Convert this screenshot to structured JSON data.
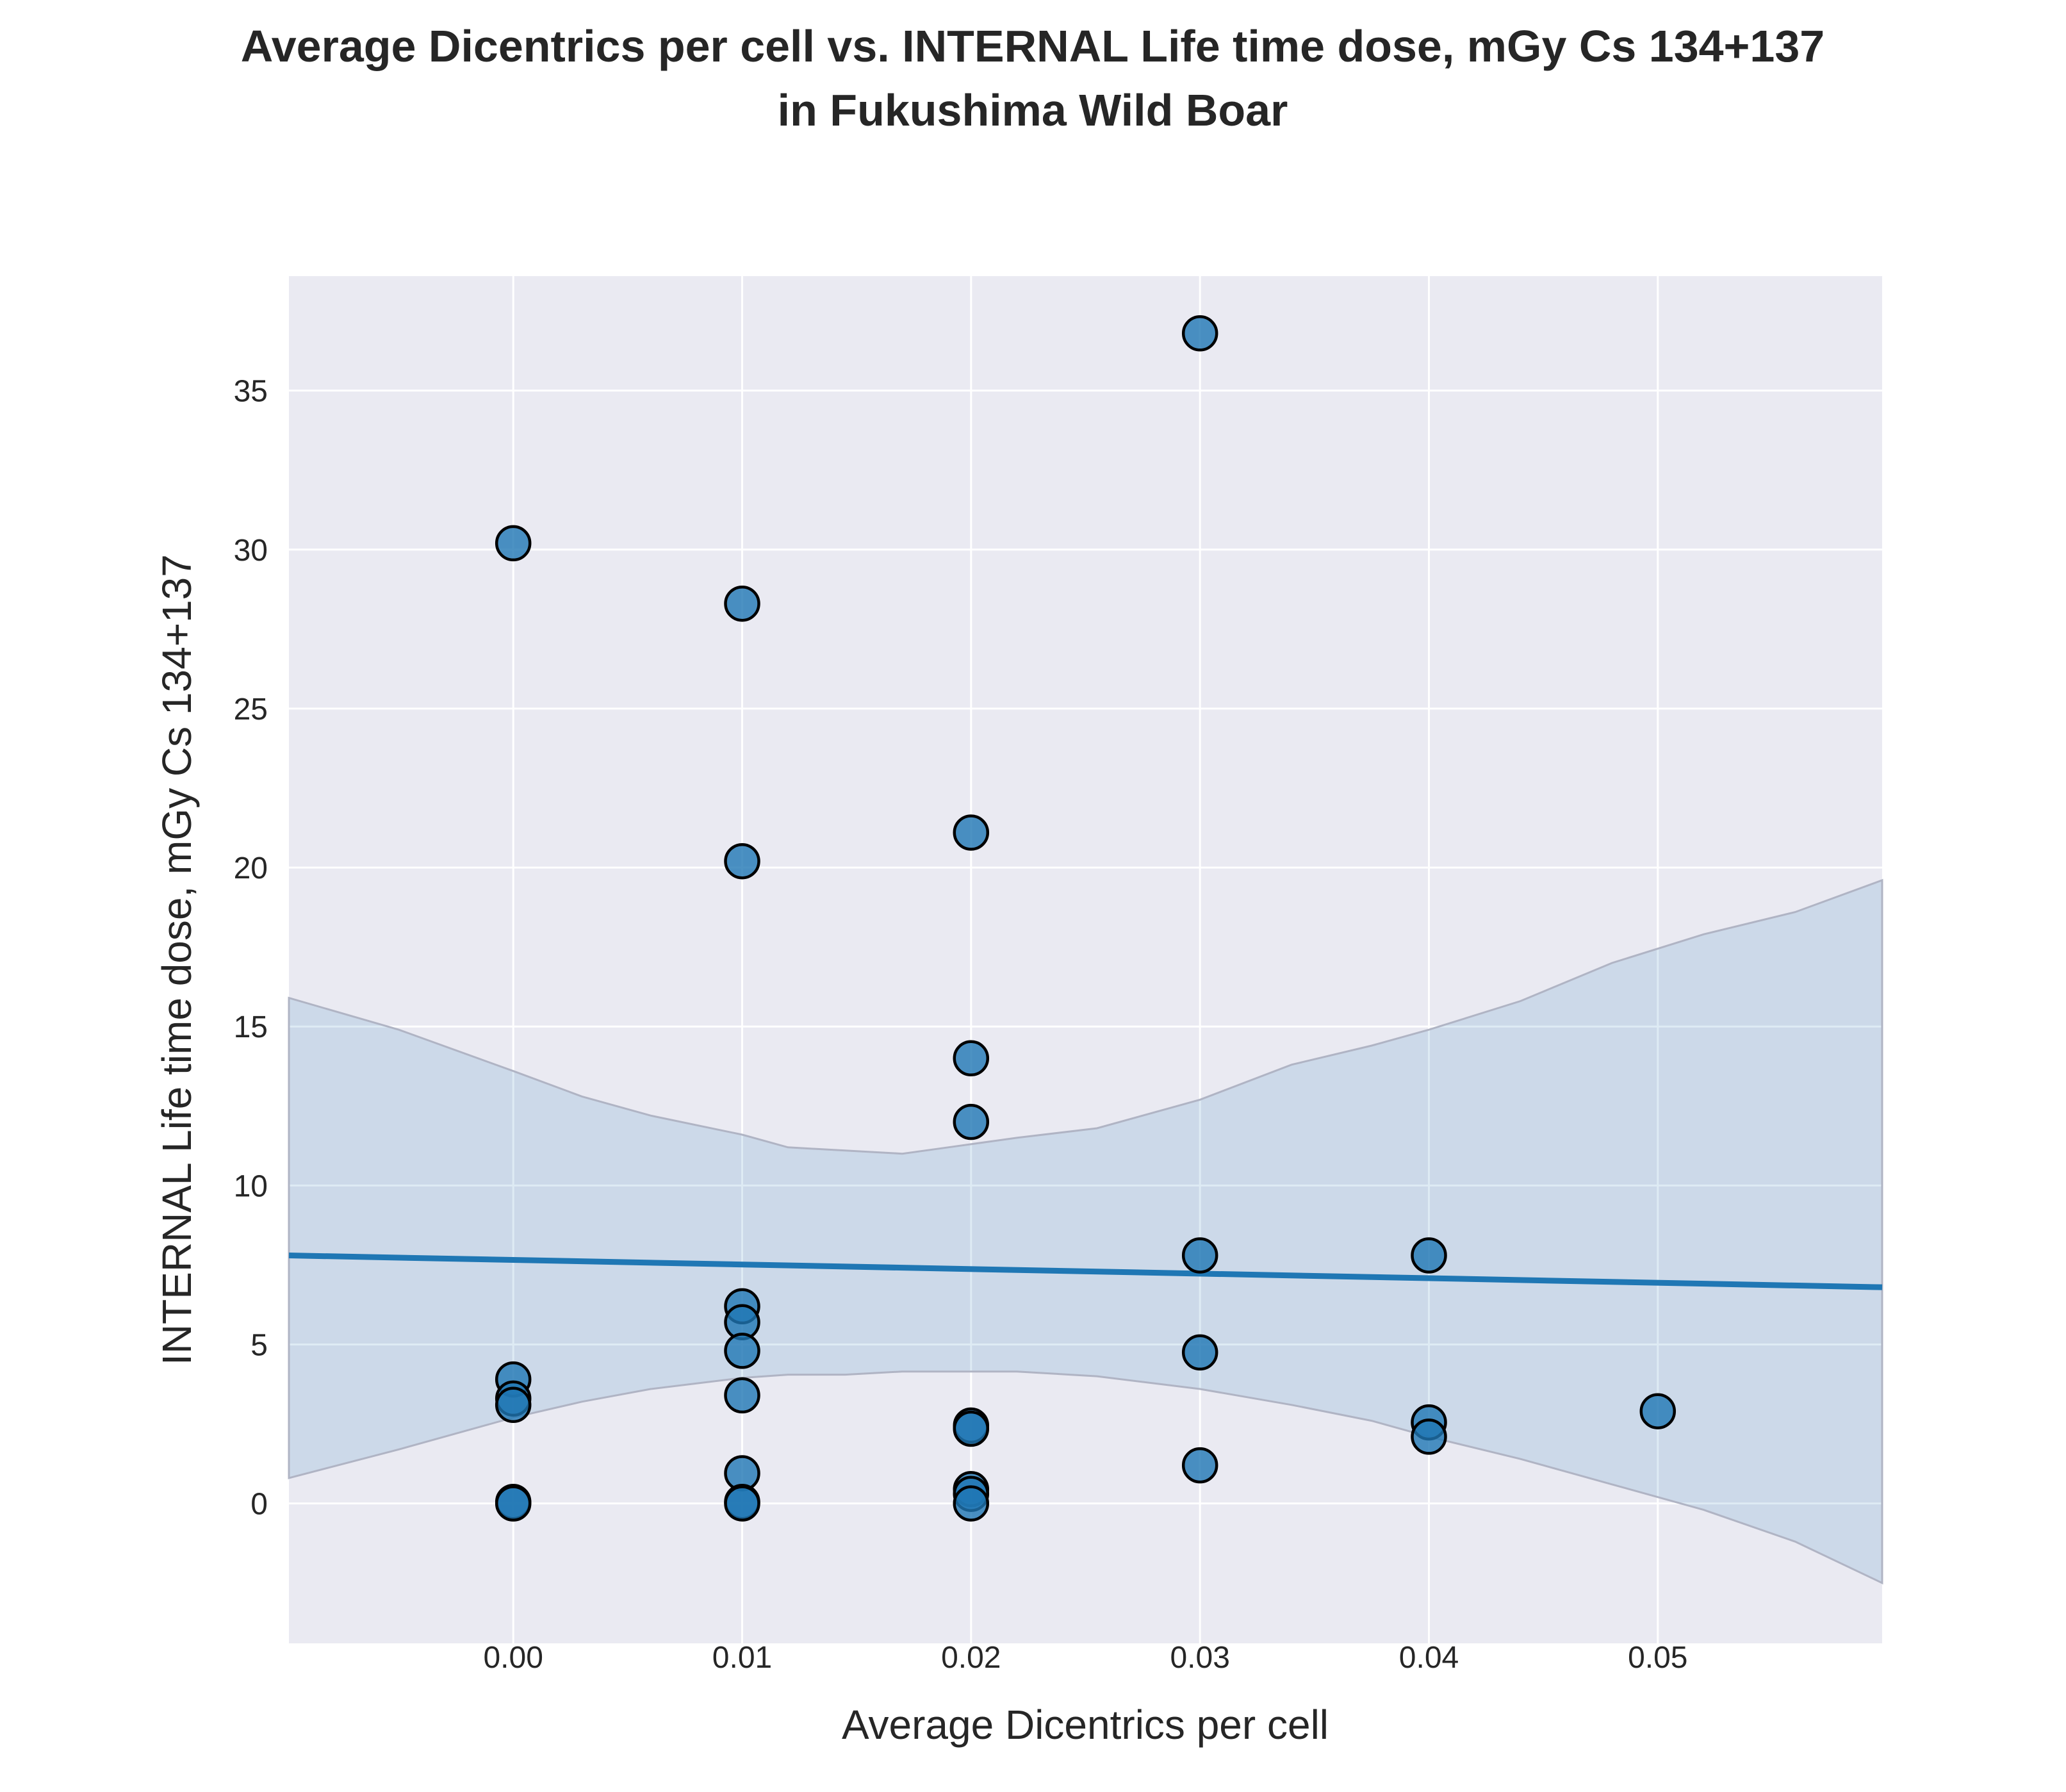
{
  "title_lines": [
    "Average Dicentrics per cell vs. INTERNAL Life time dose, mGy Cs 134+137",
    "in Fukushima Wild Boar"
  ],
  "chart_data": {
    "type": "scatter",
    "title": "Average Dicentrics per cell vs. INTERNAL Life time dose, mGy Cs 134+137 in Fukushima Wild Boar",
    "xlabel": "Average Dicentrics per cell",
    "ylabel": "INTERNAL Life time dose, mGy Cs 134+137",
    "xlim": [
      -0.0098,
      0.0598
    ],
    "ylim": [
      -4.4,
      38.6
    ],
    "x_ticks": [
      0.0,
      0.01,
      0.02,
      0.03,
      0.04,
      0.05
    ],
    "x_tick_labels": [
      "0.00",
      "0.01",
      "0.02",
      "0.03",
      "0.04",
      "0.05"
    ],
    "y_ticks": [
      0,
      5,
      10,
      15,
      20,
      25,
      30,
      35
    ],
    "y_tick_labels": [
      "0",
      "5",
      "10",
      "15",
      "20",
      "25",
      "30",
      "35"
    ],
    "grid": true,
    "legend": "none",
    "colors": {
      "background": "#eaeaf2",
      "grid": "#ffffff",
      "point_fill": "#1f77b4",
      "point_edge": "#000000",
      "regression_line": "#1f77b4",
      "ci_band": "#1f77b4",
      "text": "#262626"
    },
    "points": [
      {
        "x": 0.0,
        "y": 30.2
      },
      {
        "x": 0.0,
        "y": 3.9
      },
      {
        "x": 0.0,
        "y": 3.3
      },
      {
        "x": 0.0,
        "y": 3.1
      },
      {
        "x": 0.0,
        "y": 0.05
      },
      {
        "x": 0.0,
        "y": 0.0
      },
      {
        "x": 0.01,
        "y": 28.3
      },
      {
        "x": 0.01,
        "y": 20.2
      },
      {
        "x": 0.01,
        "y": 6.2
      },
      {
        "x": 0.01,
        "y": 5.7
      },
      {
        "x": 0.01,
        "y": 4.8
      },
      {
        "x": 0.01,
        "y": 3.4
      },
      {
        "x": 0.01,
        "y": 0.95
      },
      {
        "x": 0.01,
        "y": 0.05
      },
      {
        "x": 0.01,
        "y": 0.0
      },
      {
        "x": 0.02,
        "y": 21.1
      },
      {
        "x": 0.02,
        "y": 14.0
      },
      {
        "x": 0.02,
        "y": 12.0
      },
      {
        "x": 0.02,
        "y": 2.45
      },
      {
        "x": 0.02,
        "y": 2.35
      },
      {
        "x": 0.02,
        "y": 0.45
      },
      {
        "x": 0.02,
        "y": 0.3
      },
      {
        "x": 0.02,
        "y": 0.0
      },
      {
        "x": 0.03,
        "y": 36.8
      },
      {
        "x": 0.03,
        "y": 7.8
      },
      {
        "x": 0.03,
        "y": 4.75
      },
      {
        "x": 0.03,
        "y": 1.2
      },
      {
        "x": 0.04,
        "y": 7.8
      },
      {
        "x": 0.04,
        "y": 2.55
      },
      {
        "x": 0.04,
        "y": 2.1
      },
      {
        "x": 0.05,
        "y": 2.9
      }
    ],
    "regression": {
      "x": [
        -0.0098,
        0.0598
      ],
      "y": [
        7.8,
        6.8
      ]
    },
    "confidence_band": {
      "x": [
        -0.0098,
        -0.005,
        0.0,
        0.003,
        0.006,
        0.01,
        0.012,
        0.0145,
        0.017,
        0.019,
        0.022,
        0.0255,
        0.03,
        0.034,
        0.0375,
        0.04,
        0.044,
        0.048,
        0.052,
        0.056,
        0.0598
      ],
      "upper": [
        15.9,
        14.9,
        13.6,
        12.8,
        12.2,
        11.6,
        11.2,
        11.1,
        11.0,
        11.2,
        11.5,
        11.8,
        12.7,
        13.8,
        14.4,
        14.9,
        15.8,
        17.0,
        17.9,
        18.6,
        19.6
      ],
      "lower": [
        0.8,
        1.7,
        2.7,
        3.2,
        3.6,
        3.95,
        4.05,
        4.05,
        4.15,
        4.15,
        4.15,
        4.0,
        3.6,
        3.1,
        2.6,
        2.1,
        1.4,
        0.6,
        -0.2,
        -1.2,
        -2.5
      ]
    }
  }
}
